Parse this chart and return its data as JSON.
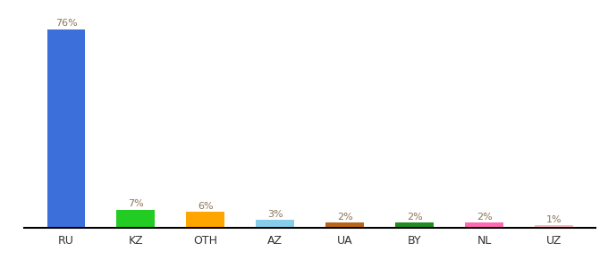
{
  "categories": [
    "RU",
    "KZ",
    "OTH",
    "AZ",
    "UA",
    "BY",
    "NL",
    "UZ"
  ],
  "values": [
    76,
    7,
    6,
    3,
    2,
    2,
    2,
    1
  ],
  "bar_colors": [
    "#3d6fdb",
    "#22cc22",
    "#ffa500",
    "#87ceeb",
    "#b8651a",
    "#228b22",
    "#ff69b4",
    "#ffb6c1"
  ],
  "label_color": "#8b7355",
  "background_color": "#ffffff",
  "ylim": [
    0,
    82
  ],
  "bar_width": 0.55
}
